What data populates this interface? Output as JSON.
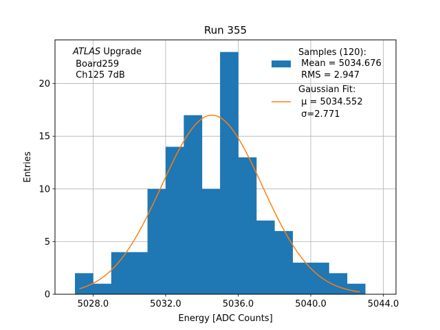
{
  "chart_data": {
    "type": "bar",
    "title": "Run 355",
    "xlabel": "Energy [ADC Counts]",
    "ylabel": "Entries",
    "xlim": [
      5025.9,
      5044.7
    ],
    "ylim": [
      0,
      24.15
    ],
    "grid": true,
    "bin_width": 1.0,
    "bin_edges": [
      5027,
      5028,
      5029,
      5030,
      5031,
      5032,
      5033,
      5034,
      5035,
      5036,
      5037,
      5038,
      5039,
      5040,
      5041,
      5042,
      5043
    ],
    "values": [
      2,
      1,
      4,
      4,
      10,
      14,
      17,
      10,
      23,
      13,
      7,
      6,
      3,
      3,
      2,
      1
    ],
    "x_ticks": [
      5028,
      5032,
      5036,
      5040,
      5044
    ],
    "x_tick_labels": [
      "5028.0",
      "5032.0",
      "5036.0",
      "5040.0",
      "5044.0"
    ],
    "y_ticks": [
      0,
      5,
      10,
      15,
      20
    ],
    "y_tick_labels": [
      "0",
      "5",
      "10",
      "15",
      "20"
    ],
    "fit": {
      "type": "gaussian",
      "amplitude": 17.0,
      "mu": 5034.552,
      "sigma": 2.771,
      "x_range": [
        5027.25,
        5042.7
      ]
    },
    "colors": {
      "histogram": "#1f77b4",
      "fit": "#ff7f0e",
      "grid": "#b0b0b0"
    },
    "legend": {
      "placement": "upper-right",
      "entries": [
        {
          "kind": "patch",
          "lines": [
            "Samples (120):",
            " Mean = 5034.676",
            " RMS = 2.947"
          ]
        },
        {
          "kind": "line",
          "lines": [
            "Gaussian Fit:",
            " μ = 5034.552",
            " σ=2.771"
          ]
        }
      ]
    },
    "annotation": {
      "placement": "upper-left",
      "line1_italic": "ATLAS",
      "line1_rest": " Upgrade",
      "line2": " Board259",
      "line3": " Ch125 7dB"
    }
  }
}
